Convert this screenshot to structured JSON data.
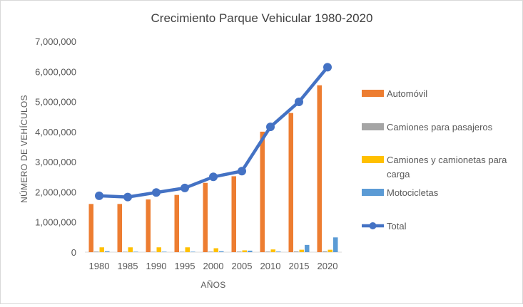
{
  "chart_data": {
    "type": "bar",
    "title": "Crecimiento Parque Vehicular 1980-2020",
    "xlabel": "AÑOS",
    "ylabel": "NÚMERO DE VEHÍCULOS",
    "ylim": [
      0,
      7000000
    ],
    "yticks": [
      "0",
      "1,000,000",
      "2,000,000",
      "3,000,000",
      "4,000,000",
      "5,000,000",
      "6,000,000",
      "7,000,000"
    ],
    "grid": false,
    "legend_position": "right",
    "categories": [
      "1980",
      "1985",
      "1990",
      "1995",
      "2000",
      "2005",
      "2010",
      "2015",
      "2020"
    ],
    "series": [
      {
        "name": "Automóvil",
        "kind": "bar",
        "color": "#ED7D31",
        "values": [
          1600000,
          1600000,
          1750000,
          1900000,
          2300000,
          2520000,
          4000000,
          4620000,
          5540000
        ]
      },
      {
        "name": "Camiones para pasajeros",
        "kind": "bar",
        "color": "#A5A5A5",
        "values": [
          20000,
          15000,
          15000,
          15000,
          20000,
          20000,
          20000,
          25000,
          30000
        ]
      },
      {
        "name": "Camiones y camionetas para carga",
        "kind": "bar",
        "color": "#FFC000",
        "values": [
          160000,
          160000,
          160000,
          160000,
          130000,
          60000,
          90000,
          80000,
          80000
        ]
      },
      {
        "name": "Motocicletas",
        "kind": "bar",
        "color": "#5B9BD5",
        "values": [
          30000,
          15000,
          15000,
          15000,
          30000,
          50000,
          20000,
          240000,
          490000
        ]
      },
      {
        "name": "Total",
        "kind": "line",
        "color": "#4472C4",
        "values": [
          1870000,
          1830000,
          1980000,
          2130000,
          2500000,
          2690000,
          4160000,
          4990000,
          6140000
        ]
      }
    ]
  }
}
